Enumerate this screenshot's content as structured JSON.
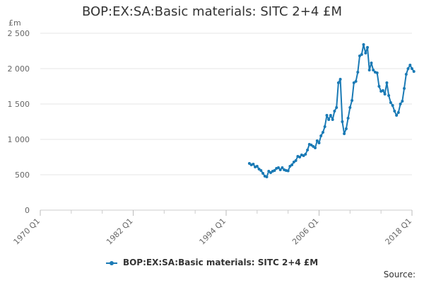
{
  "chart_data": {
    "type": "line",
    "title": "BOP:EX:SA:Basic materials: SITC 2+4 £M",
    "ylabel": "£m",
    "ylim": [
      0,
      2500
    ],
    "y_ticks": [
      0,
      500,
      1000,
      1500,
      2000,
      2500
    ],
    "y_tick_labels": [
      "0",
      "500",
      "1 000",
      "1 500",
      "2 000",
      "2 500"
    ],
    "x_ticks": [
      "1970 Q1",
      "1982 Q1",
      "1994 Q1",
      "2006 Q1",
      "2018 Q1"
    ],
    "xlim": [
      "1970 Q1",
      "2018 Q1"
    ],
    "grid": true,
    "legend": "bottom",
    "series": [
      {
        "name": "BOP:EX:SA:Basic materials: SITC 2+4 £M",
        "color": "#1a7ab5",
        "x": [
          "1997 Q1",
          "1997 Q2",
          "1997 Q3",
          "1997 Q4",
          "1998 Q1",
          "1998 Q2",
          "1998 Q3",
          "1998 Q4",
          "1999 Q1",
          "1999 Q2",
          "1999 Q3",
          "1999 Q4",
          "2000 Q1",
          "2000 Q2",
          "2000 Q3",
          "2000 Q4",
          "2001 Q1",
          "2001 Q2",
          "2001 Q3",
          "2001 Q4",
          "2002 Q1",
          "2002 Q2",
          "2002 Q3",
          "2002 Q4",
          "2003 Q1",
          "2003 Q2",
          "2003 Q3",
          "2003 Q4",
          "2004 Q1",
          "2004 Q2",
          "2004 Q3",
          "2004 Q4",
          "2005 Q1",
          "2005 Q2",
          "2005 Q3",
          "2005 Q4",
          "2006 Q1",
          "2006 Q2",
          "2006 Q3",
          "2006 Q4",
          "2007 Q1",
          "2007 Q2",
          "2007 Q3",
          "2007 Q4",
          "2008 Q1",
          "2008 Q2",
          "2008 Q3",
          "2008 Q4",
          "2009 Q1",
          "2009 Q2",
          "2009 Q3",
          "2009 Q4",
          "2010 Q1",
          "2010 Q2",
          "2010 Q3",
          "2010 Q4",
          "2011 Q1",
          "2011 Q2",
          "2011 Q3",
          "2011 Q4",
          "2012 Q1",
          "2012 Q2",
          "2012 Q3",
          "2012 Q4",
          "2013 Q1",
          "2013 Q2",
          "2013 Q3",
          "2013 Q4",
          "2014 Q1",
          "2014 Q2",
          "2014 Q3",
          "2014 Q4",
          "2015 Q1",
          "2015 Q2",
          "2015 Q3",
          "2015 Q4",
          "2016 Q1",
          "2016 Q2",
          "2016 Q3",
          "2016 Q4",
          "2017 Q1",
          "2017 Q2",
          "2017 Q3",
          "2017 Q4",
          "2018 Q1",
          "2018 Q2"
        ],
        "values": [
          660,
          640,
          650,
          610,
          620,
          580,
          560,
          520,
          480,
          470,
          550,
          530,
          550,
          560,
          590,
          600,
          570,
          600,
          570,
          560,
          555,
          620,
          640,
          680,
          700,
          760,
          750,
          780,
          770,
          790,
          850,
          930,
          920,
          900,
          880,
          980,
          950,
          1050,
          1100,
          1180,
          1340,
          1280,
          1340,
          1280,
          1400,
          1450,
          1800,
          1850,
          1250,
          1080,
          1150,
          1300,
          1450,
          1550,
          1800,
          1820,
          1950,
          2180,
          2200,
          2340,
          2220,
          2300,
          1980,
          2080,
          1980,
          1950,
          1940,
          1750,
          1680,
          1690,
          1640,
          1800,
          1620,
          1520,
          1480,
          1400,
          1340,
          1380,
          1500,
          1540,
          1720,
          1920,
          2000,
          2050,
          2000,
          1960
        ]
      }
    ]
  },
  "legend": {
    "label": "BOP:EX:SA:Basic materials: SITC 2+4 £M"
  },
  "source": {
    "label": "Source:"
  }
}
